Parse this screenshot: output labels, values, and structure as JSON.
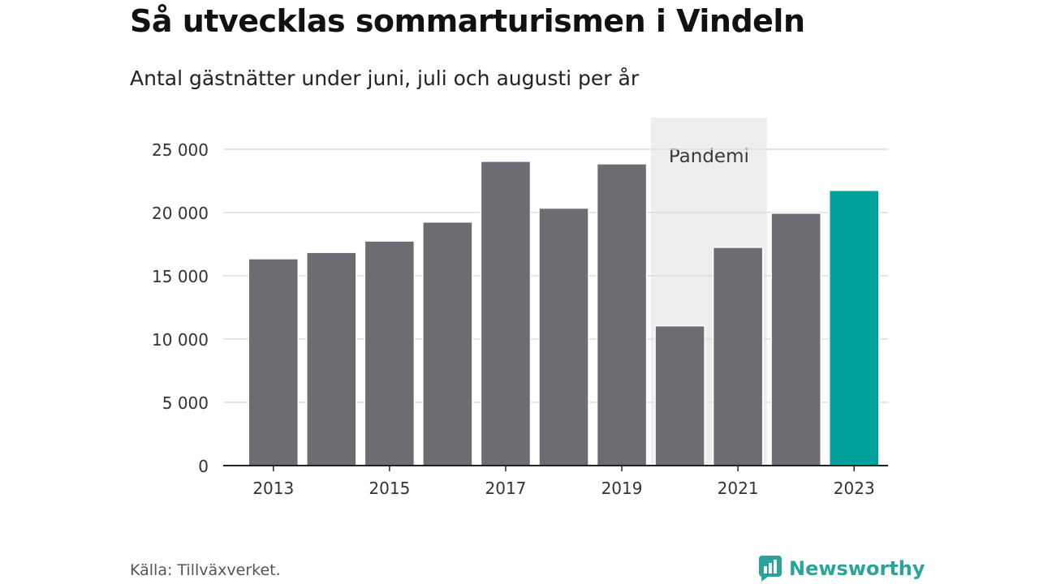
{
  "title": "Så utvecklas sommarturismen i Vindeln",
  "subtitle": "Antal gästnätter under juni, juli och augusti per år",
  "source": "Källa: Tillväxverket.",
  "brand": {
    "name": "Newsworthy",
    "color": "#2aa39a"
  },
  "chart_data": {
    "type": "bar",
    "categories": [
      "2013",
      "2014",
      "2015",
      "2016",
      "2017",
      "2018",
      "2019",
      "2020",
      "2021",
      "2022",
      "2023"
    ],
    "values": [
      16300,
      16800,
      17700,
      19200,
      24000,
      20300,
      23800,
      11000,
      17200,
      19900,
      21700
    ],
    "x_tick_labels": [
      "2013",
      "",
      "2015",
      "",
      "2017",
      "",
      "2019",
      "",
      "2021",
      "",
      "2023"
    ],
    "y_ticks": [
      0,
      5000,
      10000,
      15000,
      20000,
      25000
    ],
    "y_tick_labels": [
      "0",
      "5 000",
      "10 000",
      "15 000",
      "20 000",
      "25 000"
    ],
    "ylim": [
      0,
      27500
    ],
    "grid": true,
    "colors": {
      "default": "#6d6c73",
      "highlight": "#00a19a",
      "band": "#eeeeee"
    },
    "highlight_category": "2023",
    "shaded_band": {
      "from": "2020",
      "to": "2021",
      "label": "Pandemi"
    }
  }
}
